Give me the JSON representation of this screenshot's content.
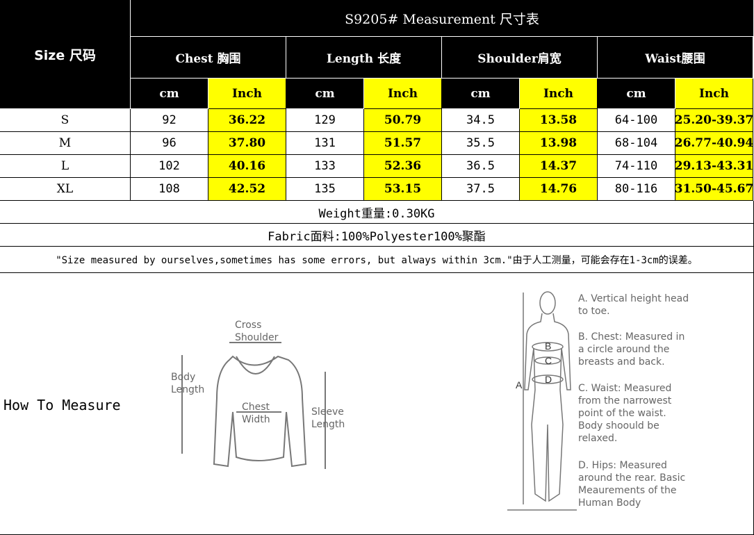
{
  "title": "S9205# Measurement 尺寸表",
  "size_header": "Size 尺码",
  "columns": [
    {
      "label": "Chest 胸围"
    },
    {
      "label": "Length 长度"
    },
    {
      "label": "Shoulder肩宽"
    },
    {
      "label": "Waist腰围"
    }
  ],
  "units": [
    "cm",
    "Inch",
    "cm",
    "Inch",
    "cm",
    "Inch",
    "cm",
    "Inch"
  ],
  "rows": [
    {
      "size": "S",
      "values": [
        "92",
        "36.22",
        "129",
        "50.79",
        "34.5",
        "13.58",
        "64-100",
        "25.20-39.37"
      ]
    },
    {
      "size": "M",
      "values": [
        "96",
        "37.80",
        "131",
        "51.57",
        "35.5",
        "13.98",
        "68-104",
        "26.77-40.94"
      ]
    },
    {
      "size": "L",
      "values": [
        "102",
        "40.16",
        "133",
        "52.36",
        "36.5",
        "14.37",
        "74-110",
        "29.13-43.31"
      ]
    },
    {
      "size": "XL",
      "values": [
        "108",
        "42.52",
        "135",
        "53.15",
        "37.5",
        "14.76",
        "80-116",
        "31.50-45.67"
      ]
    }
  ],
  "weight": "Weight重量:0.30KG",
  "fabric": "Fabric面料:100%Polyester100%聚酯",
  "note": "\"Size measured by ourselves,sometimes has some errors, but always within 3cm.\"由于人工测量，可能会存在1-3cm的误差。",
  "how_to_measure": "How To Measure",
  "sweater_labels": {
    "cross_shoulder": "Cross Shoulder",
    "body_length": "Body Length",
    "chest_width": "Chest Width",
    "sleeve_length": "Sleeve Length"
  },
  "body_labels": {
    "a": "A",
    "b": "B",
    "c": "C",
    "d": "D"
  },
  "body_notes": [
    "A. Vertical height head to toe.",
    "B. Chest: Measured in a circle around the breasts and back.",
    "C. Waist: Measured from the narrowest point of the waist. Body shoould be relaxed.",
    "D. Hips: Measured around the rear. Basic Meaurements of the Human Body"
  ],
  "colors": {
    "header": "#000000",
    "inch_highlight": "#ffff00"
  }
}
